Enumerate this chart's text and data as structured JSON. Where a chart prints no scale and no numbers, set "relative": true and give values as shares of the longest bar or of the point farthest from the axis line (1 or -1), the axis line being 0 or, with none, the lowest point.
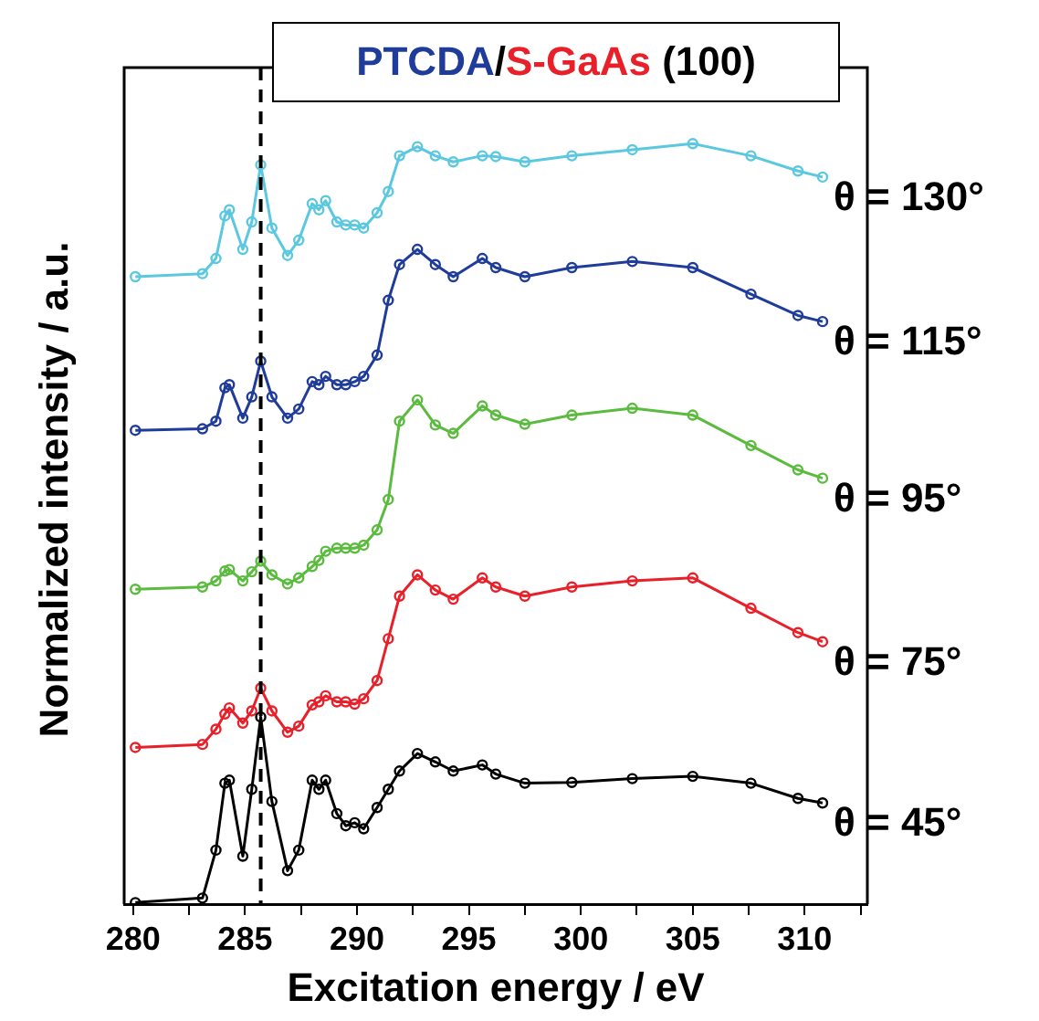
{
  "chart_data": {
    "type": "line",
    "title": "PTCDA/S-GaAs (100)",
    "xlabel": "Excitation energy / eV",
    "ylabel": "Normalized intensity / a.u.",
    "relative": true,
    "marker": "circle",
    "xlim": [
      279.6,
      312.8
    ],
    "xticks": [
      280,
      {
        "value": 282.5,
        "label": null
      },
      285,
      {
        "value": 287.5,
        "label": null
      },
      290,
      {
        "value": 292.5,
        "label": null
      },
      295,
      {
        "value": 297.5,
        "label": null
      },
      300,
      {
        "value": 302.5,
        "label": null
      },
      305,
      {
        "value": 307.5,
        "label": null
      },
      310,
      {
        "value": 312.5,
        "label": null
      }
    ],
    "ref_lines": [
      {
        "axis": "x",
        "value": 285.7,
        "color": "#000000",
        "line_style": "dashed"
      }
    ],
    "x": [
      280.1,
      283.1,
      283.7,
      284.1,
      284.3,
      284.9,
      285.3,
      285.7,
      286.2,
      286.9,
      287.4,
      288.0,
      288.3,
      288.6,
      289.1,
      289.5,
      289.9,
      290.3,
      290.9,
      291.4,
      291.9,
      292.7,
      293.5,
      294.3,
      295.6,
      296.2,
      297.5,
      299.6,
      302.3,
      305.0,
      307.6,
      309.7,
      310.8
    ],
    "series": [
      {
        "name": "θ = 45°",
        "color": "#000000",
        "values": [
          0.002,
          0.008,
          0.071,
          0.159,
          0.163,
          0.063,
          0.151,
          0.246,
          0.135,
          0.044,
          0.071,
          0.163,
          0.151,
          0.163,
          0.119,
          0.103,
          0.107,
          0.099,
          0.127,
          0.151,
          0.175,
          0.198,
          0.187,
          0.175,
          0.183,
          0.171,
          0.159,
          0.16,
          0.165,
          0.168,
          0.159,
          0.139,
          0.133
        ]
      },
      {
        "name": "θ = 75°",
        "color": "#e8202a",
        "values": [
          0.206,
          0.21,
          0.23,
          0.25,
          0.258,
          0.238,
          0.254,
          0.284,
          0.254,
          0.226,
          0.234,
          0.262,
          0.266,
          0.274,
          0.266,
          0.266,
          0.263,
          0.27,
          0.294,
          0.349,
          0.405,
          0.433,
          0.413,
          0.401,
          0.429,
          0.417,
          0.405,
          0.417,
          0.425,
          0.429,
          0.389,
          0.357,
          0.345
        ]
      },
      {
        "name": "θ = 95°",
        "color": "#5bbb3f",
        "values": [
          0.414,
          0.417,
          0.425,
          0.438,
          0.44,
          0.425,
          0.437,
          0.451,
          0.433,
          0.421,
          0.429,
          0.444,
          0.452,
          0.464,
          0.468,
          0.468,
          0.468,
          0.472,
          0.492,
          0.532,
          0.635,
          0.663,
          0.63,
          0.619,
          0.655,
          0.643,
          0.631,
          0.643,
          0.652,
          0.643,
          0.603,
          0.571,
          0.56
        ]
      },
      {
        "name": "θ = 115°",
        "color": "#1f3c9a",
        "values": [
          0.623,
          0.625,
          0.635,
          0.679,
          0.683,
          0.639,
          0.667,
          0.714,
          0.667,
          0.639,
          0.651,
          0.687,
          0.683,
          0.694,
          0.683,
          0.683,
          0.687,
          0.694,
          0.722,
          0.794,
          0.841,
          0.861,
          0.841,
          0.825,
          0.849,
          0.837,
          0.825,
          0.837,
          0.845,
          0.837,
          0.802,
          0.774,
          0.766
        ]
      },
      {
        "name": "θ = 130°",
        "color": "#5bc8e0",
        "values": [
          0.825,
          0.829,
          0.849,
          0.905,
          0.913,
          0.861,
          0.897,
          0.972,
          0.889,
          0.853,
          0.873,
          0.921,
          0.913,
          0.925,
          0.897,
          0.893,
          0.893,
          0.889,
          0.909,
          0.937,
          0.984,
          0.996,
          0.984,
          0.976,
          0.984,
          0.983,
          0.976,
          0.984,
          0.992,
          1.0,
          0.984,
          0.964,
          0.956
        ]
      }
    ]
  }
}
